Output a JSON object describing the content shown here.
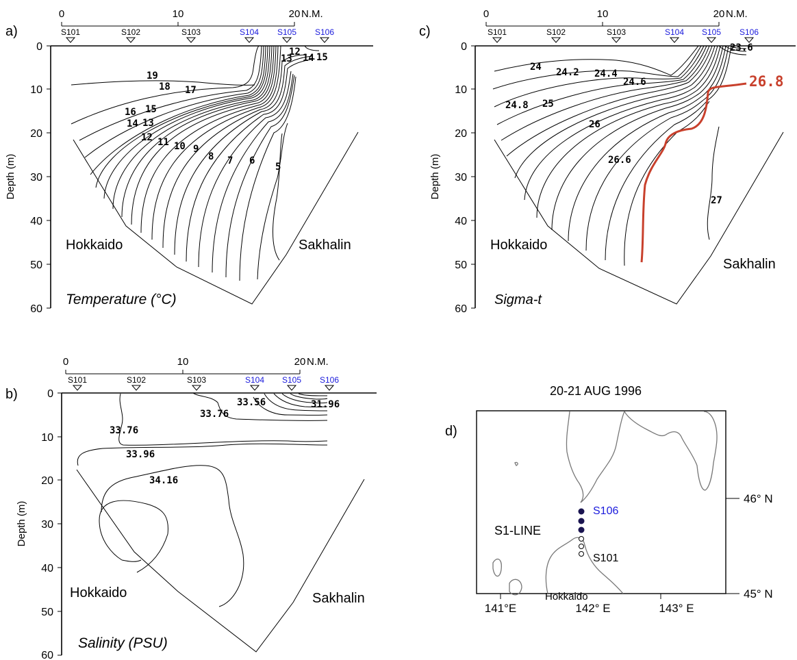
{
  "colors": {
    "axis": "#000000",
    "station_highlight": "#1a1adc",
    "isopycnal_highlight": "#c8402c",
    "station_dot_filled": "#1a1450",
    "coast": "#777777"
  },
  "panels": {
    "a": {
      "tag": "a)",
      "title": "Temperature (°C)",
      "ylabel": "Depth (m)",
      "yticks": [
        "0",
        "10",
        "20",
        "30",
        "40",
        "50",
        "60"
      ],
      "distance_ticks": [
        "0",
        "10",
        "20"
      ],
      "distance_unit": "N.M.",
      "stations": [
        "S101",
        "S102",
        "S103",
        "S104",
        "S105",
        "S106"
      ],
      "highlighted_stations": [
        "S104",
        "S105",
        "S106"
      ],
      "land_left": "Hokkaido",
      "land_right": "Sakhalin",
      "contour_labels": [
        "19",
        "18",
        "17",
        "16",
        "15",
        "14",
        "13",
        "12",
        "11",
        "10",
        "9",
        "8",
        "7",
        "6",
        "5",
        "12",
        "13",
        "14",
        "15"
      ]
    },
    "b": {
      "tag": "b)",
      "title": "Salinity  (PSU)",
      "ylabel": "Depth (m)",
      "yticks": [
        "0",
        "10",
        "20",
        "30",
        "40",
        "50",
        "60"
      ],
      "distance_ticks": [
        "0",
        "10",
        "20"
      ],
      "distance_unit": "N.M.",
      "stations": [
        "S101",
        "S102",
        "S103",
        "S104",
        "S105",
        "S106"
      ],
      "highlighted_stations": [
        "S104",
        "S105",
        "S106"
      ],
      "land_left": "Hokkaido",
      "land_right": "Sakhalin",
      "contour_labels": [
        "33.56",
        "31.96",
        "33.76",
        "33.76",
        "33.96",
        "34.16"
      ]
    },
    "c": {
      "tag": "c)",
      "title": "Sigma-t",
      "ylabel": "Depth (m)",
      "yticks": [
        "0",
        "10",
        "20",
        "30",
        "40",
        "50",
        "60"
      ],
      "distance_ticks": [
        "0",
        "10",
        "20"
      ],
      "distance_unit": "N.M.",
      "stations": [
        "S101",
        "S102",
        "S103",
        "S104",
        "S105",
        "S106"
      ],
      "highlighted_stations": [
        "S104",
        "S105",
        "S106"
      ],
      "land_left": "Hokkaido",
      "land_right": "Sakhalin",
      "contour_labels": [
        "23.6",
        "24",
        "24.2",
        "24.4",
        "24.6",
        "24.8",
        "25",
        "26",
        "26.6",
        "27"
      ],
      "highlight_label": "26.8"
    },
    "d": {
      "tag": "d)",
      "date": "20-21 AUG 1996",
      "line_label": "S1-LINE",
      "station_top": "S106",
      "station_bottom": "S101",
      "land_label": "Hokkaido",
      "lon_labels": [
        "141°E",
        "142° E",
        "143° E"
      ],
      "lat_labels": [
        "46° N",
        "45° N"
      ]
    }
  },
  "chart_data": [
    {
      "type": "heatmap",
      "variant": "vertical section contours",
      "title": "Temperature (°C)",
      "ylabel": "Depth (m)",
      "ylim": [
        60,
        0
      ],
      "xlim_nm": [
        0,
        20
      ],
      "stations": [
        "S101",
        "S102",
        "S103",
        "S104",
        "S105",
        "S106"
      ],
      "contour_levels": [
        5,
        6,
        7,
        8,
        9,
        10,
        11,
        12,
        13,
        14,
        15,
        16,
        17,
        18,
        19
      ]
    },
    {
      "type": "heatmap",
      "variant": "vertical section contours",
      "title": "Salinity (PSU)",
      "ylabel": "Depth (m)",
      "ylim": [
        60,
        0
      ],
      "xlim_nm": [
        0,
        20
      ],
      "stations": [
        "S101",
        "S102",
        "S103",
        "S104",
        "S105",
        "S106"
      ],
      "contour_levels": [
        31.96,
        33.56,
        33.76,
        33.96,
        34.16
      ]
    },
    {
      "type": "heatmap",
      "variant": "vertical section contours",
      "title": "Sigma-t",
      "ylabel": "Depth (m)",
      "ylim": [
        60,
        0
      ],
      "xlim_nm": [
        0,
        20
      ],
      "stations": [
        "S101",
        "S102",
        "S103",
        "S104",
        "S105",
        "S106"
      ],
      "contour_levels": [
        23.6,
        24,
        24.2,
        24.4,
        24.6,
        24.8,
        25,
        26,
        26.6,
        26.8,
        27
      ],
      "highlighted_level": 26.8
    }
  ]
}
